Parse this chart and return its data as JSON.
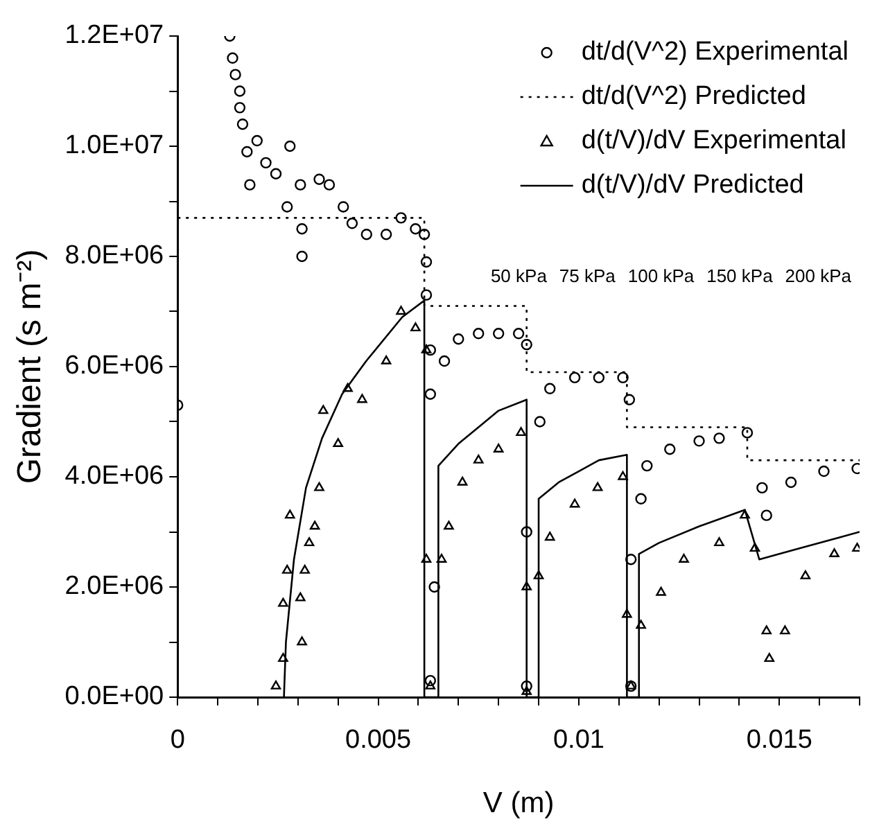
{
  "chart_data": {
    "type": "scatter",
    "xlabel": "V (m)",
    "ylabel": "Gradient (s m⁻²)",
    "legend": "top right",
    "grid": false,
    "xlim": [
      0,
      0.017
    ],
    "xticks": [
      0,
      {
        "value": 0.001,
        "label": null
      },
      {
        "value": 0.002,
        "label": null
      },
      {
        "value": 0.003,
        "label": null
      },
      {
        "value": 0.004,
        "label": null
      },
      0.005,
      {
        "value": 0.006,
        "label": null
      },
      {
        "value": 0.007,
        "label": null
      },
      {
        "value": 0.008,
        "label": null
      },
      {
        "value": 0.009,
        "label": null
      },
      0.01,
      {
        "value": 0.011,
        "label": null
      },
      {
        "value": 0.012,
        "label": null
      },
      {
        "value": 0.013,
        "label": null
      },
      {
        "value": 0.014,
        "label": null
      },
      0.015,
      {
        "value": 0.016,
        "label": null
      },
      {
        "value": 0.017,
        "label": null
      }
    ],
    "ylim": [
      0,
      12000000
    ],
    "yticks": [
      {
        "value": 0,
        "label": "0.0E+00"
      },
      {
        "value": 1000000,
        "label": null
      },
      {
        "value": 2000000,
        "label": "2.0E+06"
      },
      {
        "value": 3000000,
        "label": null
      },
      {
        "value": 4000000,
        "label": "4.0E+06"
      },
      {
        "value": 5000000,
        "label": null
      },
      {
        "value": 6000000,
        "label": "6.0E+06"
      },
      {
        "value": 7000000,
        "label": null
      },
      {
        "value": 8000000,
        "label": "8.0E+06"
      },
      {
        "value": 9000000,
        "label": null
      },
      {
        "value": 10000000,
        "label": "1.0E+07"
      },
      {
        "value": 11000000,
        "label": null
      },
      {
        "value": 12000000,
        "label": "1.2E+07"
      }
    ],
    "series": [
      {
        "name": "dt/d(V^2) Experimental",
        "marker": "circle",
        "color": "#000000",
        "x": [
          0,
          0.0013,
          0.00137,
          0.00144,
          0.00155,
          0.00155,
          0.00162,
          0.00173,
          0.0018,
          0.00198,
          0.0022,
          0.00245,
          0.00273,
          0.0028,
          0.00306,
          0.0031,
          0.0031,
          0.00353,
          0.00378,
          0.00413,
          0.00435,
          0.00471,
          0.0052,
          0.00557,
          0.00593,
          0.00615,
          0.0062,
          0.0062,
          0.0063,
          0.0063,
          0.0063,
          0.0064,
          0.00665,
          0.007,
          0.0075,
          0.008,
          0.0085,
          0.0087,
          0.0087,
          0.0087,
          0.00903,
          0.00928,
          0.0099,
          0.0105,
          0.0111,
          0.01126,
          0.0113,
          0.0113,
          0.01155,
          0.0117,
          0.01227,
          0.013,
          0.0135,
          0.0142,
          0.01457,
          0.01468,
          0.01529,
          0.01611,
          0.01694
        ],
        "values": [
          5300000,
          12000000,
          11600000,
          11300000,
          11000000,
          10700000,
          10400000,
          9900000,
          9300000,
          10100000,
          9700000,
          9500000,
          8900000,
          10000000,
          9300000,
          8000000,
          8500000,
          9400000,
          9300000,
          8900000,
          8600000,
          8400000,
          8400000,
          8700000,
          8500000,
          8400000,
          7900000,
          7300000,
          6300000,
          5500000,
          300000,
          2000000,
          6100000,
          6500000,
          6600000,
          6600000,
          6600000,
          6400000,
          3000000,
          200000,
          5000000,
          5600000,
          5800000,
          5800000,
          5800000,
          5400000,
          2500000,
          200000,
          3600000,
          4200000,
          4500000,
          4650000,
          4700000,
          4800000,
          3800000,
          3300000,
          3900000,
          4100000,
          4150000
        ]
      },
      {
        "name": "dt/d(V^2) Predicted",
        "type": "line",
        "line_style": "dotted",
        "color": "#000000",
        "x": [
          0,
          0.00615,
          0.00615,
          0.0087,
          0.0087,
          0.0112,
          0.0112,
          0.0142,
          0.0142,
          0.017
        ],
        "values": [
          8700000,
          8700000,
          7100000,
          7100000,
          5900000,
          5900000,
          4900000,
          4900000,
          4300000,
          4300000
        ]
      },
      {
        "name": "d(t/V)/dV Experimental",
        "marker": "triangle",
        "color": "#000000",
        "x": [
          0.00245,
          0.00263,
          0.00263,
          0.00273,
          0.0028,
          0.00306,
          0.0031,
          0.00317,
          0.00328,
          0.00342,
          0.00353,
          0.00363,
          0.004,
          0.00424,
          0.0046,
          0.0052,
          0.00557,
          0.00593,
          0.0062,
          0.0062,
          0.0063,
          0.00658,
          0.00676,
          0.0071,
          0.0075,
          0.008,
          0.00856,
          0.0087,
          0.0087,
          0.009,
          0.00928,
          0.0099,
          0.01047,
          0.0111,
          0.0112,
          0.0113,
          0.01155,
          0.01205,
          0.01262,
          0.0135,
          0.01414,
          0.01439,
          0.01468,
          0.01475,
          0.01514,
          0.01565,
          0.01637,
          0.01694
        ],
        "values": [
          200000,
          700000,
          1700000,
          2300000,
          3300000,
          1800000,
          1000000,
          2300000,
          2800000,
          3100000,
          3800000,
          5200000,
          4600000,
          5600000,
          5400000,
          6100000,
          7000000,
          6700000,
          6300000,
          2500000,
          200000,
          2500000,
          3100000,
          3900000,
          4300000,
          4500000,
          4800000,
          2000000,
          100000,
          2200000,
          2900000,
          3500000,
          3800000,
          4000000,
          1500000,
          200000,
          1300000,
          1900000,
          2500000,
          2800000,
          3300000,
          2700000,
          1200000,
          700000,
          1200000,
          2200000,
          2600000,
          2700000
        ]
      },
      {
        "name": "d(t/V)/dV Predicted",
        "type": "line",
        "line_style": "solid",
        "color": "#000000",
        "x": [
          0.00265,
          0.0027,
          0.0029,
          0.0032,
          0.0036,
          0.0041,
          0.0047,
          0.0056,
          0.00615,
          0.00615,
          0.0065,
          0.0065,
          0.007,
          0.0075,
          0.008,
          0.0087,
          0.0087,
          0.009,
          0.009,
          0.0095,
          0.01,
          0.0105,
          0.0112,
          0.0112,
          0.0115,
          0.0115,
          0.012,
          0.013,
          0.01414,
          0.0145,
          0.0155,
          0.0165,
          0.017
        ],
        "values": [
          0,
          1000000,
          2500000,
          3800000,
          4700000,
          5500000,
          6100000,
          6900000,
          7200000,
          0,
          0,
          4200000,
          4600000,
          4900000,
          5200000,
          5400000,
          0,
          0,
          3600000,
          3900000,
          4100000,
          4300000,
          4400000,
          0,
          0,
          2600000,
          2800000,
          3100000,
          3400000,
          2500000,
          2700000,
          2900000,
          3000000
        ]
      }
    ],
    "annotations": [
      "50 kPa",
      "75 kPa",
      "100 kPa",
      "150 kPa",
      "200 kPa"
    ]
  }
}
